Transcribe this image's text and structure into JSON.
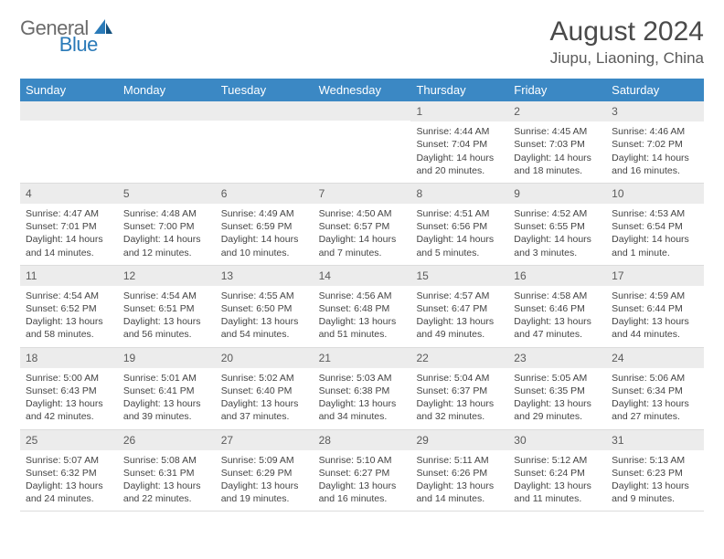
{
  "logo": {
    "text1": "General",
    "text2": "Blue"
  },
  "header": {
    "month_title": "August 2024",
    "location": "Jiupu, Liaoning, China"
  },
  "colors": {
    "header_bar": "#3b88c4",
    "day_num_bg": "#ececec",
    "logo_gray": "#6b6b6b",
    "logo_blue": "#2a7ab8",
    "text": "#444444",
    "divider": "#dcdcdc"
  },
  "day_names": [
    "Sunday",
    "Monday",
    "Tuesday",
    "Wednesday",
    "Thursday",
    "Friday",
    "Saturday"
  ],
  "weeks": [
    [
      {
        "num": "",
        "sunrise": "",
        "sunset": "",
        "daylight": ""
      },
      {
        "num": "",
        "sunrise": "",
        "sunset": "",
        "daylight": ""
      },
      {
        "num": "",
        "sunrise": "",
        "sunset": "",
        "daylight": ""
      },
      {
        "num": "",
        "sunrise": "",
        "sunset": "",
        "daylight": ""
      },
      {
        "num": "1",
        "sunrise": "4:44 AM",
        "sunset": "7:04 PM",
        "daylight": "14 hours and 20 minutes."
      },
      {
        "num": "2",
        "sunrise": "4:45 AM",
        "sunset": "7:03 PM",
        "daylight": "14 hours and 18 minutes."
      },
      {
        "num": "3",
        "sunrise": "4:46 AM",
        "sunset": "7:02 PM",
        "daylight": "14 hours and 16 minutes."
      }
    ],
    [
      {
        "num": "4",
        "sunrise": "4:47 AM",
        "sunset": "7:01 PM",
        "daylight": "14 hours and 14 minutes."
      },
      {
        "num": "5",
        "sunrise": "4:48 AM",
        "sunset": "7:00 PM",
        "daylight": "14 hours and 12 minutes."
      },
      {
        "num": "6",
        "sunrise": "4:49 AM",
        "sunset": "6:59 PM",
        "daylight": "14 hours and 10 minutes."
      },
      {
        "num": "7",
        "sunrise": "4:50 AM",
        "sunset": "6:57 PM",
        "daylight": "14 hours and 7 minutes."
      },
      {
        "num": "8",
        "sunrise": "4:51 AM",
        "sunset": "6:56 PM",
        "daylight": "14 hours and 5 minutes."
      },
      {
        "num": "9",
        "sunrise": "4:52 AM",
        "sunset": "6:55 PM",
        "daylight": "14 hours and 3 minutes."
      },
      {
        "num": "10",
        "sunrise": "4:53 AM",
        "sunset": "6:54 PM",
        "daylight": "14 hours and 1 minute."
      }
    ],
    [
      {
        "num": "11",
        "sunrise": "4:54 AM",
        "sunset": "6:52 PM",
        "daylight": "13 hours and 58 minutes."
      },
      {
        "num": "12",
        "sunrise": "4:54 AM",
        "sunset": "6:51 PM",
        "daylight": "13 hours and 56 minutes."
      },
      {
        "num": "13",
        "sunrise": "4:55 AM",
        "sunset": "6:50 PM",
        "daylight": "13 hours and 54 minutes."
      },
      {
        "num": "14",
        "sunrise": "4:56 AM",
        "sunset": "6:48 PM",
        "daylight": "13 hours and 51 minutes."
      },
      {
        "num": "15",
        "sunrise": "4:57 AM",
        "sunset": "6:47 PM",
        "daylight": "13 hours and 49 minutes."
      },
      {
        "num": "16",
        "sunrise": "4:58 AM",
        "sunset": "6:46 PM",
        "daylight": "13 hours and 47 minutes."
      },
      {
        "num": "17",
        "sunrise": "4:59 AM",
        "sunset": "6:44 PM",
        "daylight": "13 hours and 44 minutes."
      }
    ],
    [
      {
        "num": "18",
        "sunrise": "5:00 AM",
        "sunset": "6:43 PM",
        "daylight": "13 hours and 42 minutes."
      },
      {
        "num": "19",
        "sunrise": "5:01 AM",
        "sunset": "6:41 PM",
        "daylight": "13 hours and 39 minutes."
      },
      {
        "num": "20",
        "sunrise": "5:02 AM",
        "sunset": "6:40 PM",
        "daylight": "13 hours and 37 minutes."
      },
      {
        "num": "21",
        "sunrise": "5:03 AM",
        "sunset": "6:38 PM",
        "daylight": "13 hours and 34 minutes."
      },
      {
        "num": "22",
        "sunrise": "5:04 AM",
        "sunset": "6:37 PM",
        "daylight": "13 hours and 32 minutes."
      },
      {
        "num": "23",
        "sunrise": "5:05 AM",
        "sunset": "6:35 PM",
        "daylight": "13 hours and 29 minutes."
      },
      {
        "num": "24",
        "sunrise": "5:06 AM",
        "sunset": "6:34 PM",
        "daylight": "13 hours and 27 minutes."
      }
    ],
    [
      {
        "num": "25",
        "sunrise": "5:07 AM",
        "sunset": "6:32 PM",
        "daylight": "13 hours and 24 minutes."
      },
      {
        "num": "26",
        "sunrise": "5:08 AM",
        "sunset": "6:31 PM",
        "daylight": "13 hours and 22 minutes."
      },
      {
        "num": "27",
        "sunrise": "5:09 AM",
        "sunset": "6:29 PM",
        "daylight": "13 hours and 19 minutes."
      },
      {
        "num": "28",
        "sunrise": "5:10 AM",
        "sunset": "6:27 PM",
        "daylight": "13 hours and 16 minutes."
      },
      {
        "num": "29",
        "sunrise": "5:11 AM",
        "sunset": "6:26 PM",
        "daylight": "13 hours and 14 minutes."
      },
      {
        "num": "30",
        "sunrise": "5:12 AM",
        "sunset": "6:24 PM",
        "daylight": "13 hours and 11 minutes."
      },
      {
        "num": "31",
        "sunrise": "5:13 AM",
        "sunset": "6:23 PM",
        "daylight": "13 hours and 9 minutes."
      }
    ]
  ],
  "labels": {
    "sunrise_prefix": "Sunrise: ",
    "sunset_prefix": "Sunset: ",
    "daylight_prefix": "Daylight: "
  }
}
